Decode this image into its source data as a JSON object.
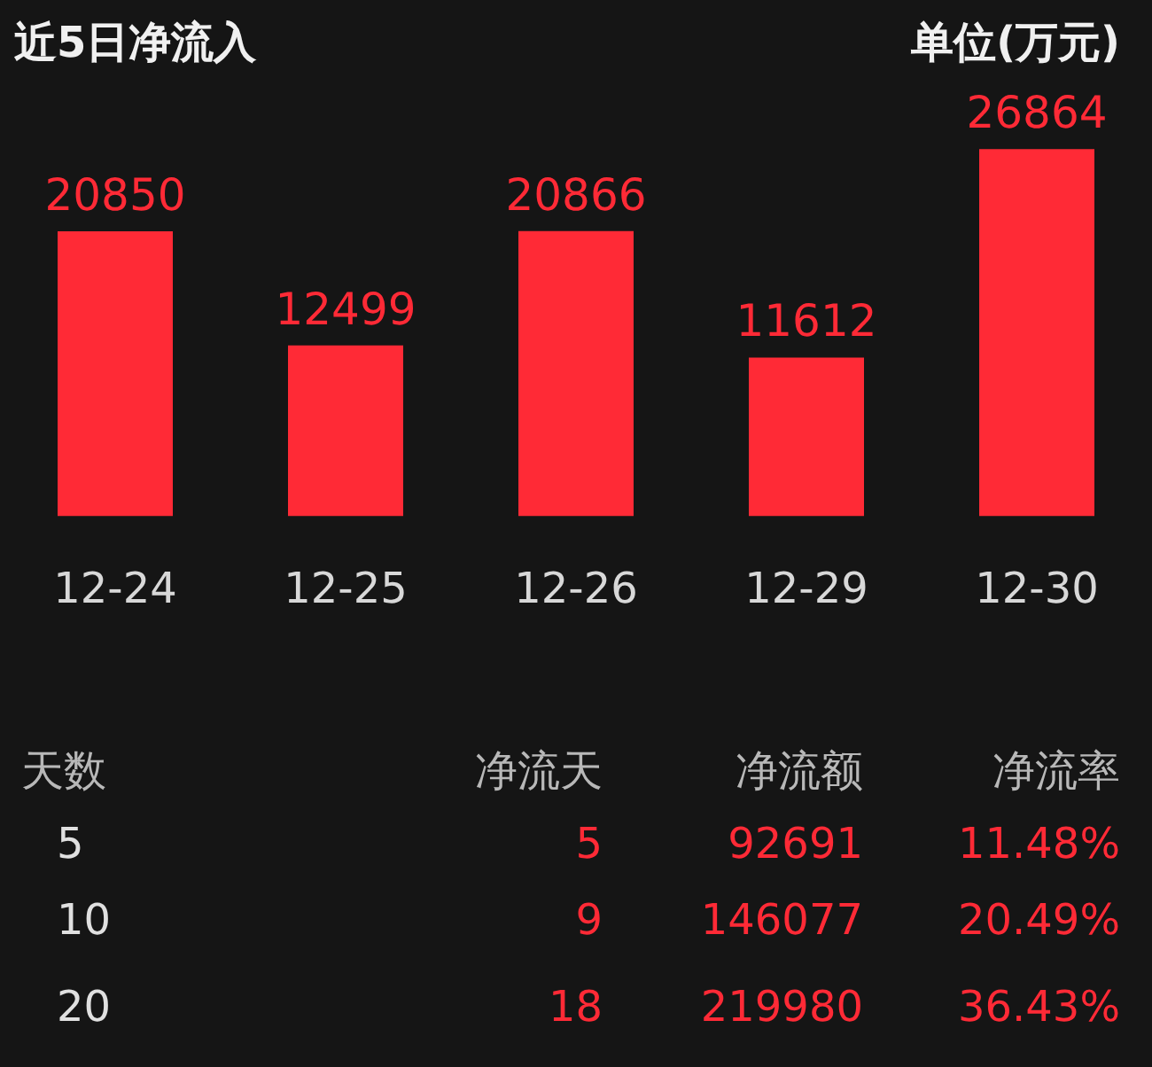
{
  "chart_data": [
    {
      "type": "bar",
      "title": "近5日净流入",
      "annotations": [
        "单位(万元)"
      ],
      "categories": [
        "12-24",
        "12-25",
        "12-26",
        "12-29",
        "12-30"
      ],
      "values": [
        20850,
        12499,
        20866,
        11612,
        26864
      ],
      "color": "#ff2a36",
      "data_labels": true
    },
    {
      "type": "other",
      "annotations": [
        "天数",
        "净流天",
        "净流额",
        "净流率",
        "5",
        "5",
        "92691",
        "11.48%",
        "10",
        "9",
        "146077",
        "20.49%",
        "20",
        "18",
        "219980",
        "36.43%"
      ]
    }
  ]
}
